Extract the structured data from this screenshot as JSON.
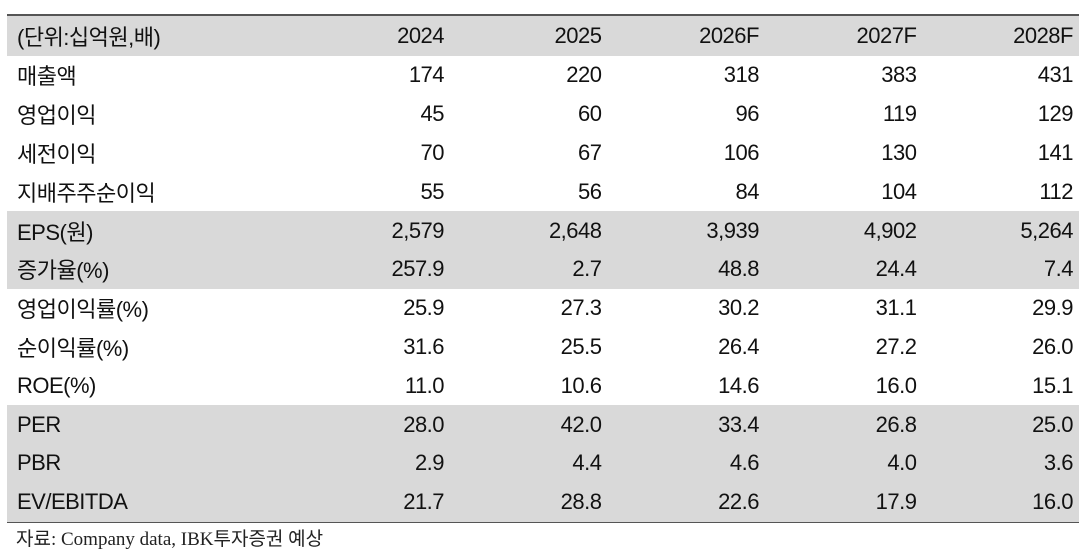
{
  "table": {
    "header": [
      "(단위:십억원,배)",
      "2024",
      "2025",
      "2026F",
      "2027F",
      "2028F"
    ],
    "rows": [
      {
        "label": "매출액",
        "values": [
          "174",
          "220",
          "318",
          "383",
          "431"
        ]
      },
      {
        "label": "영업이익",
        "values": [
          "45",
          "60",
          "96",
          "119",
          "129"
        ]
      },
      {
        "label": "세전이익",
        "values": [
          "70",
          "67",
          "106",
          "130",
          "141"
        ]
      },
      {
        "label": "지배주주순이익",
        "values": [
          "55",
          "56",
          "84",
          "104",
          "112"
        ]
      },
      {
        "label": "EPS(원)",
        "values": [
          "2,579",
          "2,648",
          "3,939",
          "4,902",
          "5,264"
        ]
      },
      {
        "label": "증가율(%)",
        "values": [
          "257.9",
          "2.7",
          "48.8",
          "24.4",
          "7.4"
        ]
      },
      {
        "label": "영업이익률(%)",
        "values": [
          "25.9",
          "27.3",
          "30.2",
          "31.1",
          "29.9"
        ]
      },
      {
        "label": "순이익률(%)",
        "values": [
          "31.6",
          "25.5",
          "26.4",
          "27.2",
          "26.0"
        ]
      },
      {
        "label": "ROE(%)",
        "values": [
          "11.0",
          "10.6",
          "14.6",
          "16.0",
          "15.1"
        ]
      },
      {
        "label": "PER",
        "values": [
          "28.0",
          "42.0",
          "33.4",
          "26.8",
          "25.0"
        ]
      },
      {
        "label": "PBR",
        "values": [
          "2.9",
          "4.4",
          "4.6",
          "4.0",
          "3.6"
        ]
      },
      {
        "label": "EV/EBITDA",
        "values": [
          "21.7",
          "28.8",
          "22.6",
          "17.9",
          "16.0"
        ]
      }
    ]
  },
  "source": "자료: Company data, IBK투자증권 예상"
}
